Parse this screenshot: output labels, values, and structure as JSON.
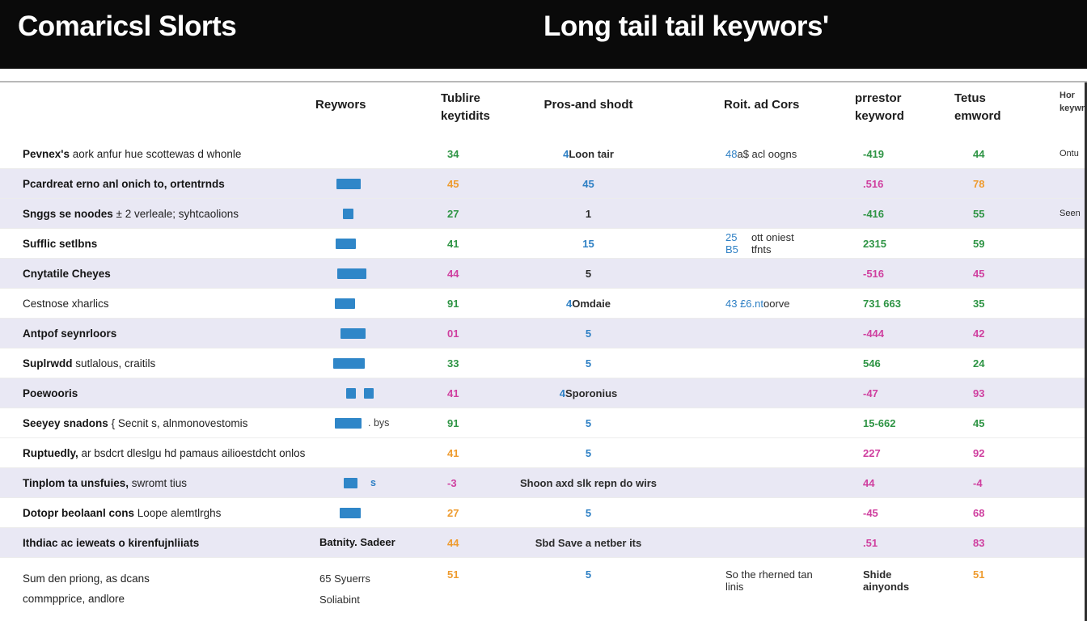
{
  "banner": {
    "left_title": "Comaricsl Slorts",
    "right_title": "Long tail tail keywors'"
  },
  "colors": {
    "banner_bg": "#0a0a0a",
    "bar_blue": "#2f86c8",
    "green": "#2e9444",
    "orange": "#ee9b2e",
    "pink": "#cf3f9f",
    "blue": "#2d7fc4",
    "dark": "#2b2b2b",
    "row_shade": "#e9e8f4"
  },
  "table": {
    "headers": [
      "",
      "Reywors",
      "Tublire\nkeytidits",
      "Pros-and shodt",
      "Roit. ad Cors",
      "prrestor\nkeyword",
      "Tetus\nemword",
      "Hor\nkeywr"
    ],
    "rows": [
      {
        "label": {
          "strong": "Pevnex's",
          "rest": " aork anfur hue scottewas d whonle"
        },
        "c3": [
          {
            "t": "34",
            "c": "green"
          }
        ],
        "c4": [
          {
            "t": "4 ",
            "c": "blue"
          },
          {
            "t": "Loon tair",
            "c": "dark"
          }
        ],
        "c5": [
          {
            "t": "48 ",
            "c": "blue"
          },
          {
            "t": "a$ acl oogns",
            "c": "dark"
          }
        ],
        "c6": [
          {
            "t": "-419",
            "c": "green"
          }
        ],
        "c7": [
          {
            "t": "44",
            "c": "green"
          }
        ],
        "c8": [
          {
            "t": "Ontu",
            "c": "dark"
          }
        ]
      },
      {
        "shaded": true,
        "label": {
          "strong": "Pcardreat erno anl onich to, ortentrnds",
          "rest": ""
        },
        "bars": {
          "indent": 26,
          "segments": [
            30
          ]
        },
        "c3": [
          {
            "t": "45",
            "c": "orange"
          }
        ],
        "c4": [
          {
            "t": "45",
            "c": "blue"
          }
        ],
        "c6": [
          {
            "t": ".516",
            "c": "pink"
          }
        ],
        "c7": [
          {
            "t": "78",
            "c": "orange"
          }
        ]
      },
      {
        "shaded": true,
        "label": {
          "strong": "Snggs se noodes",
          "rest": " ± 2 verleale; syhtcaolions"
        },
        "bars": {
          "indent": 34,
          "segments": [
            13
          ]
        },
        "c3": [
          {
            "t": "27",
            "c": "green"
          }
        ],
        "c4": [
          {
            "t": "1",
            "c": "dark"
          }
        ],
        "c6": [
          {
            "t": "-416",
            "c": "green"
          }
        ],
        "c7": [
          {
            "t": "55",
            "c": "green"
          }
        ],
        "c8": [
          {
            "t": "Seen",
            "c": "dark"
          }
        ]
      },
      {
        "label": {
          "strong": "Sufflic setlbns",
          "rest": ""
        },
        "bars": {
          "indent": 25,
          "segments": [
            25
          ]
        },
        "c3": [
          {
            "t": "41",
            "c": "green"
          }
        ],
        "c4": [
          {
            "t": "15",
            "c": "blue"
          }
        ],
        "c5": [
          {
            "t": "25 B5 ",
            "c": "blue"
          },
          {
            "t": "ott oniest tfnts",
            "c": "dark"
          }
        ],
        "c6": [
          {
            "t": "2315",
            "c": "green"
          }
        ],
        "c7": [
          {
            "t": "59",
            "c": "green"
          }
        ]
      },
      {
        "shaded": true,
        "label": {
          "strong": "Cnytatile Cheyes",
          "rest": ""
        },
        "bars": {
          "indent": 27,
          "segments": [
            36
          ]
        },
        "c3": [
          {
            "t": "44",
            "c": "pink"
          }
        ],
        "c4": [
          {
            "t": "5",
            "c": "dark"
          }
        ],
        "c6": [
          {
            "t": "-516",
            "c": "pink"
          }
        ],
        "c7": [
          {
            "t": "45",
            "c": "pink"
          }
        ]
      },
      {
        "label": {
          "strong": "",
          "rest": "Cestnose xharlics"
        },
        "bars": {
          "indent": 24,
          "segments": [
            25
          ]
        },
        "c3": [
          {
            "t": "91",
            "c": "green"
          }
        ],
        "c4": [
          {
            "t": "4 ",
            "c": "blue"
          },
          {
            "t": "Omdaie",
            "c": "dark"
          }
        ],
        "c5": [
          {
            "t": "43 £6.nt ",
            "c": "blue"
          },
          {
            "t": "oorve",
            "c": "dark"
          }
        ],
        "c6": [
          {
            "t": "731 663",
            "c": "green"
          }
        ],
        "c7": [
          {
            "t": "35",
            "c": "green"
          }
        ]
      },
      {
        "shaded": true,
        "label": {
          "strong": "Antpof seynrloors",
          "rest": ""
        },
        "bars": {
          "indent": 31,
          "segments": [
            31
          ]
        },
        "c3": [
          {
            "t": "01",
            "c": "pink"
          }
        ],
        "c4": [
          {
            "t": "5",
            "c": "blue"
          }
        ],
        "c6": [
          {
            "t": "-444",
            "c": "pink"
          }
        ],
        "c7": [
          {
            "t": "42",
            "c": "pink"
          }
        ]
      },
      {
        "label": {
          "strong": "Suplrwdd",
          "rest": " sutlalous, craitils"
        },
        "bars": {
          "indent": 22,
          "segments": [
            39
          ]
        },
        "c3": [
          {
            "t": "33",
            "c": "green"
          }
        ],
        "c4": [
          {
            "t": "5",
            "c": "blue"
          }
        ],
        "c6": [
          {
            "t": "546",
            "c": "green"
          }
        ],
        "c7": [
          {
            "t": "24",
            "c": "green"
          }
        ]
      },
      {
        "shaded": true,
        "label": {
          "strong": "Poewooris",
          "rest": ""
        },
        "bars": {
          "indent": 38,
          "segments": [
            12,
            12
          ]
        },
        "c3": [
          {
            "t": "41",
            "c": "pink"
          }
        ],
        "c4": [
          {
            "t": "4 ",
            "c": "blue"
          },
          {
            "t": "Sporonius",
            "c": "dark"
          }
        ],
        "c6": [
          {
            "t": "-47",
            "c": "pink"
          }
        ],
        "c7": [
          {
            "t": "93",
            "c": "pink"
          }
        ]
      },
      {
        "label": {
          "strong": "Seeyey snadons",
          "rest": " { Secnit s, alnmonovestomis"
        },
        "bars": {
          "indent": 24,
          "segments": [
            33
          ],
          "suffix": ". bys"
        },
        "c3": [
          {
            "t": "91",
            "c": "green"
          }
        ],
        "c4": [
          {
            "t": "5",
            "c": "blue"
          }
        ],
        "c6": [
          {
            "t": "15-662",
            "c": "green"
          }
        ],
        "c7": [
          {
            "t": "45",
            "c": "green"
          }
        ]
      },
      {
        "label": {
          "strong": "Ruptuedly,",
          "rest": " ar bsdcrt dleslgu hd pamaus ailioestdcht onlos"
        },
        "c3": [
          {
            "t": "41",
            "c": "orange"
          }
        ],
        "c4": [
          {
            "t": "5",
            "c": "blue"
          }
        ],
        "c6": [
          {
            "t": "227",
            "c": "pink"
          }
        ],
        "c7": [
          {
            "t": "92",
            "c": "pink"
          }
        ]
      },
      {
        "shaded": true,
        "label": {
          "strong": "Tinplom ta unsfuies,",
          "rest": " swromt tius"
        },
        "bars": {
          "indent": 35,
          "segments": [
            17
          ],
          "suffix": "s",
          "suffix_class": "blue-bold"
        },
        "c3": [
          {
            "t": "-3",
            "c": "pink"
          }
        ],
        "c4": [
          {
            "t": "Shoon axd slk repn do wirs",
            "c": "dark",
            "b": true
          }
        ],
        "c6": [
          {
            "t": "44",
            "c": "pink"
          }
        ],
        "c7": [
          {
            "t": "-4",
            "c": "pink"
          }
        ]
      },
      {
        "label": {
          "strong": "Dotopr beolaanl cons",
          "rest": " Loope alemtlrghs"
        },
        "bars": {
          "indent": 30,
          "segments": [
            26
          ]
        },
        "c3": [
          {
            "t": "27",
            "c": "orange"
          }
        ],
        "c4": [
          {
            "t": "5",
            "c": "blue"
          }
        ],
        "c6": [
          {
            "t": "-45",
            "c": "pink"
          }
        ],
        "c7": [
          {
            "t": "68",
            "c": "pink"
          }
        ]
      },
      {
        "shaded": true,
        "label": {
          "strong": "Ithdiac ac ieweats o kirenfujnliiats",
          "rest": ""
        },
        "col2_lines": [
          "Batnity. Sadeer"
        ],
        "col2_bold": true,
        "c3": [
          {
            "t": "44",
            "c": "orange"
          }
        ],
        "c4": [
          {
            "t": "Sbd Save a netber its",
            "c": "dark",
            "b": true
          }
        ],
        "c6": [
          {
            "t": ".51",
            "c": "pink"
          }
        ],
        "c7": [
          {
            "t": "83",
            "c": "pink"
          }
        ]
      },
      {
        "tall": true,
        "label": {
          "strong": "",
          "rest": "Sum den priong, as dcans",
          "line2": "commpprice, andlore"
        },
        "col2_lines": [
          "65 Syuerrs",
          "Soliabint"
        ],
        "c3": [
          {
            "t": "51",
            "c": "orange"
          }
        ],
        "c4": [
          {
            "t": "5",
            "c": "blue"
          }
        ],
        "c5": [
          {
            "t": "So the rherned tan linis",
            "c": "dark"
          }
        ],
        "c6": [
          {
            "t": "Shide ainyonds",
            "c": "dark"
          }
        ],
        "c7": [
          {
            "t": "51",
            "c": "orange"
          }
        ]
      }
    ]
  }
}
